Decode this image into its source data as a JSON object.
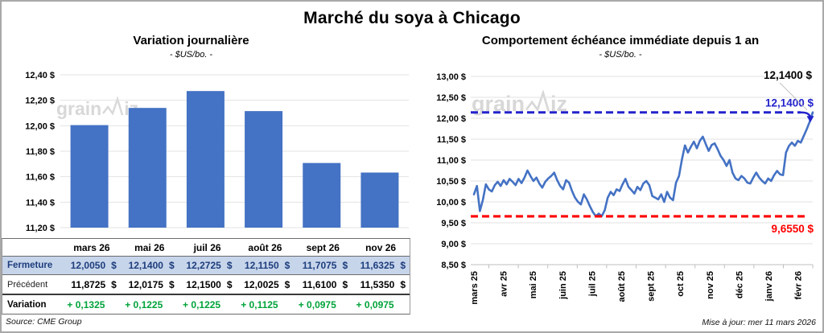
{
  "page": {
    "title": "Marché du soya à Chicago",
    "source_note": "Source: CME Group",
    "update_note": "Mise à jour: mer 11 mars 2026",
    "watermark": {
      "pre": "grain",
      "post": "iz"
    }
  },
  "colors": {
    "bar_blue": "#4472C4",
    "line_blue": "#4472C4",
    "ref_blue": "#2323CC",
    "ref_red": "#FF0000",
    "green": "#00A33A",
    "grid": "#E2E2E2",
    "axis": "#BFBFBF",
    "leader": "#C4C4C4",
    "close_row_bg": "#C7D5EB",
    "close_row_text": "#1D3D7C",
    "watermark": "#D8D8D8"
  },
  "chart_data": [
    {
      "type": "bar",
      "title": "Variation journalière",
      "subtitle": "- $US/bo. -",
      "categories": [
        "mars 26",
        "mai 26",
        "juil 26",
        "août 26",
        "sept 26",
        "nov 26"
      ],
      "values": [
        12.005,
        12.14,
        12.2725,
        12.115,
        11.7075,
        11.6325
      ],
      "xlabel": "",
      "ylabel": "",
      "ylim": [
        11.2,
        12.4
      ],
      "yticks": [
        12.4,
        12.2,
        12.0,
        11.8,
        11.6,
        11.4,
        11.2
      ],
      "ytick_labels": [
        "12,40 $",
        "12,20 $",
        "12,00 $",
        "11,80 $",
        "11,60 $",
        "11,40 $",
        "11,20 $"
      ],
      "grid": true,
      "legend": "none"
    },
    {
      "type": "line",
      "title": "Comportement échéance immédiate depuis 1 an",
      "subtitle": "- $US/bo. -",
      "x_labels": [
        "mars 25",
        "avr 25",
        "mai 25",
        "juin 25",
        "juil 25",
        "août 25",
        "sept 25",
        "oct 25",
        "nov 25",
        "déc 25",
        "janv 26",
        "févr 26"
      ],
      "xlabel": "",
      "ylabel": "",
      "ylim": [
        8.5,
        13.0
      ],
      "yticks": [
        13.0,
        12.5,
        12.0,
        11.5,
        11.0,
        10.5,
        10.0,
        9.5,
        9.0,
        8.5
      ],
      "ytick_labels": [
        "13,00 $",
        "12,50 $",
        "12,00 $",
        "11,50 $",
        "11,00 $",
        "10,50 $",
        "10,00 $",
        "9,50 $",
        "9,00 $",
        "8,50 $"
      ],
      "grid": true,
      "legend": "none",
      "values": [
        10.18,
        10.38,
        9.78,
        10.05,
        10.42,
        10.3,
        10.25,
        10.4,
        10.48,
        10.38,
        10.52,
        10.42,
        10.55,
        10.48,
        10.4,
        10.55,
        10.45,
        10.58,
        10.75,
        10.62,
        10.5,
        10.58,
        10.44,
        10.34,
        10.48,
        10.56,
        10.62,
        10.7,
        10.52,
        10.38,
        10.3,
        10.52,
        10.46,
        10.26,
        10.1,
        10.0,
        9.94,
        10.18,
        10.06,
        9.9,
        9.76,
        9.66,
        9.72,
        9.66,
        9.8,
        10.1,
        10.24,
        10.16,
        10.3,
        10.26,
        10.42,
        10.55,
        10.36,
        10.28,
        10.2,
        10.36,
        10.28,
        10.44,
        10.5,
        10.4,
        10.14,
        10.1,
        10.06,
        10.18,
        10.0,
        10.24,
        10.1,
        10.04,
        10.46,
        10.62,
        11.02,
        11.35,
        11.18,
        11.32,
        11.44,
        11.28,
        11.46,
        11.56,
        11.38,
        11.22,
        11.36,
        11.4,
        11.26,
        11.1,
        11.0,
        10.86,
        11.0,
        10.7,
        10.56,
        10.52,
        10.62,
        10.56,
        10.46,
        10.44,
        10.58,
        10.7,
        10.58,
        10.5,
        10.44,
        10.56,
        10.5,
        10.64,
        10.74,
        10.66,
        10.64,
        11.18,
        11.34,
        11.42,
        11.34,
        11.46,
        11.42,
        11.58,
        11.74,
        11.92,
        12.14
      ],
      "ref_lines": [
        {
          "value": 12.14,
          "label": "12,1400 $",
          "color_key": "ref_blue"
        },
        {
          "value": 9.655,
          "label": "9,6550 $",
          "color_key": "ref_red"
        }
      ],
      "callout": {
        "label": "12,1400 $"
      }
    }
  ],
  "table": {
    "header": [
      "mars 26",
      "mai 26",
      "juil 26",
      "août 26",
      "sept 26",
      "nov 26"
    ],
    "currency_symbol": "$",
    "rows": [
      {
        "label": "Fermeture",
        "style": "close",
        "currency": true,
        "values": [
          "12,0050",
          "12,1400",
          "12,2725",
          "12,1150",
          "11,7075",
          "11,6325"
        ]
      },
      {
        "label": "Précédent",
        "style": "previous",
        "currency": true,
        "values": [
          "11,8725",
          "12,0175",
          "12,1500",
          "12,0025",
          "11,6100",
          "11,5350"
        ]
      },
      {
        "label": "Variation",
        "style": "variation",
        "currency": false,
        "values": [
          "+ 0,1325",
          "+ 0,1225",
          "+ 0,1225",
          "+ 0,1125",
          "+ 0,0975",
          "+ 0,0975"
        ]
      }
    ]
  }
}
